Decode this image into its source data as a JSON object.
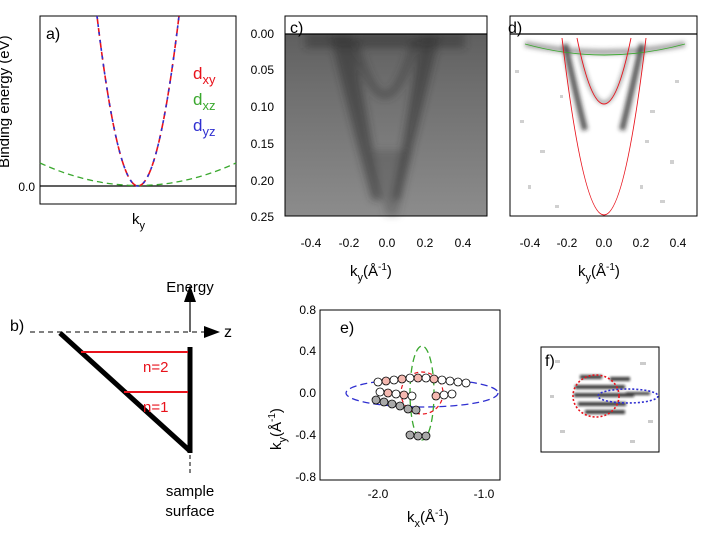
{
  "colors": {
    "dxy": "#e8121b",
    "dxz": "#3aa82e",
    "dyz": "#2f2fd0",
    "red": "#e8121b",
    "black": "#000000"
  },
  "panel_a": {
    "label": "a)",
    "ylabel": "Binding energy (eV)",
    "ytick": "0.0",
    "xlabel_main": "k",
    "xlabel_sub": "y",
    "legend": [
      {
        "main": "d",
        "sub": "xy"
      },
      {
        "main": "d",
        "sub": "xz"
      },
      {
        "main": "d",
        "sub": "yz"
      }
    ]
  },
  "panel_b": {
    "label": "b)",
    "energy_label": "Energy",
    "z_label": "z",
    "levels": [
      "n=2",
      "n=1"
    ],
    "surface_label_1": "sample",
    "surface_label_2": "surface"
  },
  "panel_c": {
    "label": "c)",
    "yticks": [
      "0.00",
      "0.05",
      "0.10",
      "0.15",
      "0.20",
      "0.25"
    ],
    "xticks": [
      "-0.4",
      "-0.2",
      "0.0",
      "0.2",
      "0.4"
    ],
    "xlabel_main": "k",
    "xlabel_sub": "y",
    "xlabel_unit": "(Å",
    "xlabel_exp": "-1",
    "xlabel_close": ")"
  },
  "panel_d": {
    "label": "d)",
    "xticks": [
      "-0.4",
      "-0.2",
      "0.0",
      "0.2",
      "0.4"
    ],
    "xlabel_main": "k",
    "xlabel_sub": "y",
    "xlabel_unit": "(Å",
    "xlabel_exp": "-1",
    "xlabel_close": ")"
  },
  "panel_e": {
    "label": "e)",
    "yticks": [
      "0.8",
      "0.4",
      "0.0",
      "-0.4",
      "-0.8"
    ],
    "xticks": [
      "-2.0",
      "-1.0"
    ],
    "ylabel_main": "k",
    "ylabel_sub": "y",
    "ylabel_unit": "(Å",
    "ylabel_exp": "-1",
    "ylabel_close": ")",
    "xlabel_main": "k",
    "xlabel_sub": "x",
    "xlabel_unit": "(Å",
    "xlabel_exp": "-1",
    "xlabel_close": ")"
  },
  "panel_f": {
    "label": "f)"
  }
}
